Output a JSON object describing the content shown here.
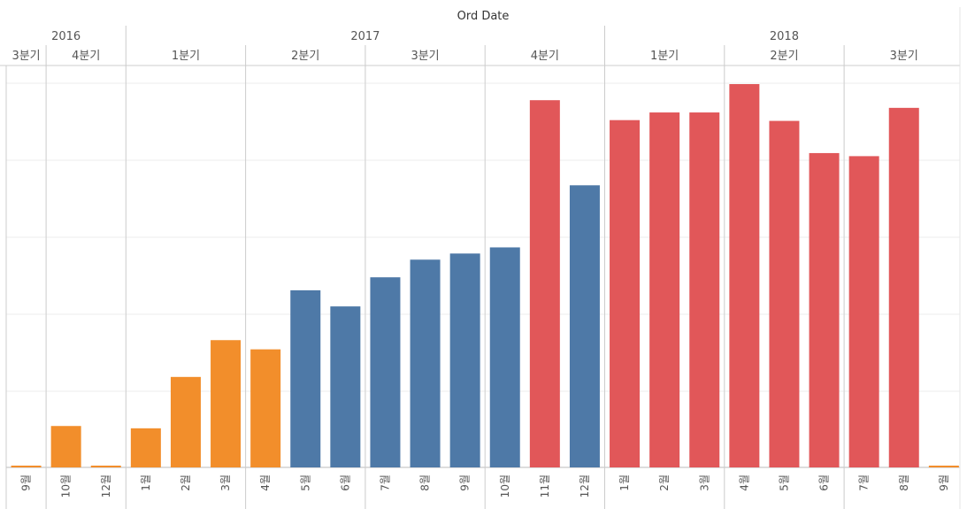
{
  "chart_data": {
    "type": "bar",
    "title": "Ord Date",
    "month_suffix": "월",
    "years": [
      {
        "label": "2016",
        "quarters": [
          {
            "label": "3분기",
            "months": [
              {
                "label": "9",
                "value": 1,
                "color": "#f28e2b"
              }
            ]
          },
          {
            "label": "4분기",
            "months": [
              {
                "label": "10",
                "value": 54,
                "color": "#f28e2b"
              },
              {
                "label": "12",
                "value": 1,
                "color": "#f28e2b"
              }
            ]
          }
        ]
      },
      {
        "label": "2017",
        "quarters": [
          {
            "label": "1분기",
            "months": [
              {
                "label": "1",
                "value": 51,
                "color": "#f28e2b"
              },
              {
                "label": "2",
                "value": 118,
                "color": "#f28e2b"
              },
              {
                "label": "3",
                "value": 166,
                "color": "#f28e2b"
              }
            ]
          },
          {
            "label": "2분기",
            "months": [
              {
                "label": "4",
                "value": 154,
                "color": "#f28e2b"
              },
              {
                "label": "5",
                "value": 231,
                "color": "#4e79a7"
              },
              {
                "label": "6",
                "value": 210,
                "color": "#4e79a7"
              }
            ]
          },
          {
            "label": "3분기",
            "months": [
              {
                "label": "7",
                "value": 248,
                "color": "#4e79a7"
              },
              {
                "label": "8",
                "value": 271,
                "color": "#4e79a7"
              },
              {
                "label": "9",
                "value": 279,
                "color": "#4e79a7"
              }
            ]
          },
          {
            "label": "4분기",
            "months": [
              {
                "label": "10",
                "value": 287,
                "color": "#4e79a7"
              },
              {
                "label": "11",
                "value": 479,
                "color": "#e15759"
              },
              {
                "label": "12",
                "value": 368,
                "color": "#4e79a7"
              }
            ]
          }
        ]
      },
      {
        "label": "2018",
        "quarters": [
          {
            "label": "1분기",
            "months": [
              {
                "label": "1",
                "value": 453,
                "color": "#e15759"
              },
              {
                "label": "2",
                "value": 463,
                "color": "#e15759"
              },
              {
                "label": "3",
                "value": 463,
                "color": "#e15759"
              }
            ]
          },
          {
            "label": "2분기",
            "months": [
              {
                "label": "4",
                "value": 500,
                "color": "#e15759"
              },
              {
                "label": "5",
                "value": 452,
                "color": "#e15759"
              },
              {
                "label": "6",
                "value": 410,
                "color": "#e15759"
              }
            ]
          },
          {
            "label": "3분기",
            "months": [
              {
                "label": "7",
                "value": 406,
                "color": "#e15759"
              },
              {
                "label": "8",
                "value": 469,
                "color": "#e15759"
              },
              {
                "label": "9",
                "value": 1,
                "color": "#f28e2b"
              }
            ]
          }
        ]
      }
    ],
    "ylim": [
      0,
      500
    ],
    "gridlines": [
      0,
      100,
      200,
      300,
      400,
      500
    ],
    "legend": "none"
  }
}
